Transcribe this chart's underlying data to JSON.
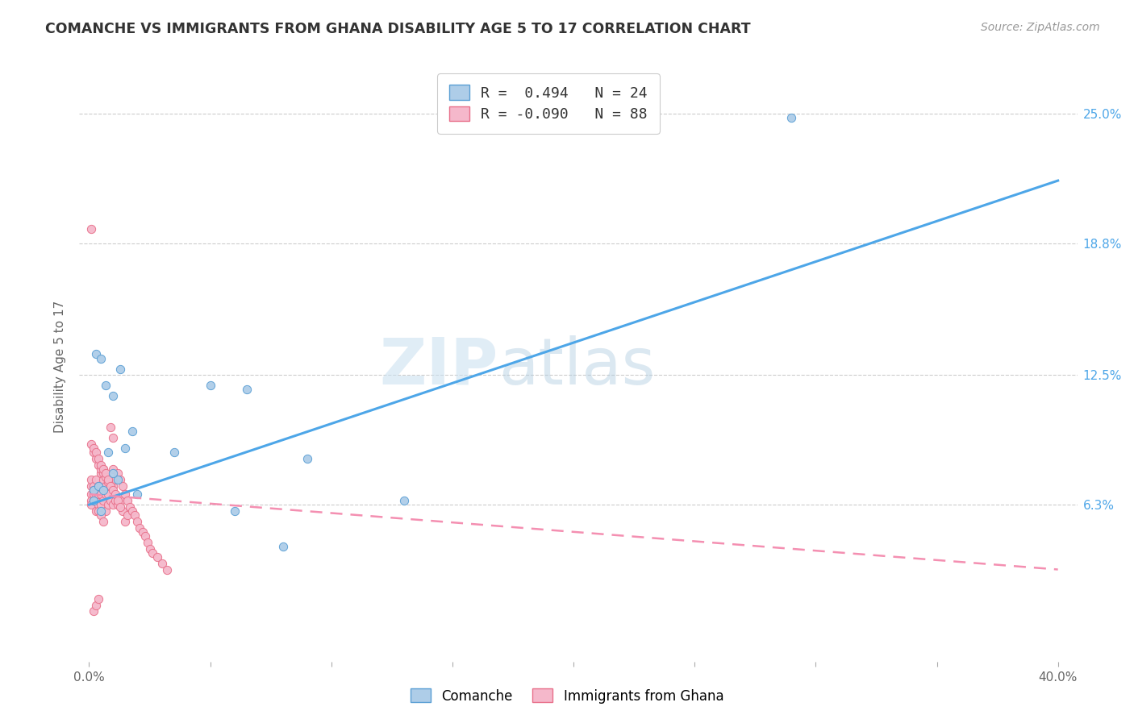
{
  "title": "COMANCHE VS IMMIGRANTS FROM GHANA DISABILITY AGE 5 TO 17 CORRELATION CHART",
  "source": "Source: ZipAtlas.com",
  "ylabel": "Disability Age 5 to 17",
  "xlim": [
    0.0,
    0.4
  ],
  "ylim": [
    0.0,
    0.27
  ],
  "yticks": [
    0.063,
    0.125,
    0.188,
    0.25
  ],
  "ytick_labels": [
    "6.3%",
    "12.5%",
    "18.8%",
    "25.0%"
  ],
  "xticks": [
    0.0,
    0.05,
    0.1,
    0.15,
    0.2,
    0.25,
    0.3,
    0.35,
    0.4
  ],
  "xtick_labels": [
    "0.0%",
    "",
    "",
    "",
    "",
    "",
    "",
    "",
    "40.0%"
  ],
  "comanche_color": "#aecde8",
  "ghana_color": "#f5b8cb",
  "comanche_edge": "#5a9fd4",
  "ghana_edge": "#e8708a",
  "trend_comanche_color": "#4da6e8",
  "trend_ghana_color": "#f48fb1",
  "legend_r_comanche": "R =  0.494",
  "legend_n_comanche": "N = 24",
  "legend_r_ghana": "R = -0.090",
  "legend_n_ghana": "N = 88",
  "watermark_zip": "ZIP",
  "watermark_atlas": "atlas",
  "comanche_trend_x": [
    0.0,
    0.4
  ],
  "comanche_trend_y": [
    0.063,
    0.218
  ],
  "ghana_trend_x": [
    0.0,
    0.4
  ],
  "ghana_trend_y": [
    0.068,
    0.032
  ],
  "comanche_x": [
    0.003,
    0.005,
    0.007,
    0.01,
    0.013,
    0.002,
    0.004,
    0.006,
    0.008,
    0.012,
    0.015,
    0.018,
    0.035,
    0.05,
    0.065,
    0.09,
    0.13,
    0.002,
    0.005,
    0.01,
    0.02,
    0.06,
    0.08,
    0.29
  ],
  "comanche_y": [
    0.135,
    0.133,
    0.12,
    0.115,
    0.128,
    0.07,
    0.072,
    0.07,
    0.088,
    0.075,
    0.09,
    0.098,
    0.088,
    0.12,
    0.118,
    0.085,
    0.065,
    0.065,
    0.06,
    0.078,
    0.068,
    0.06,
    0.043,
    0.248
  ],
  "ghana_x": [
    0.001,
    0.001,
    0.001,
    0.001,
    0.001,
    0.002,
    0.002,
    0.002,
    0.002,
    0.003,
    0.003,
    0.003,
    0.003,
    0.004,
    0.004,
    0.004,
    0.004,
    0.005,
    0.005,
    0.005,
    0.005,
    0.006,
    0.006,
    0.006,
    0.007,
    0.007,
    0.007,
    0.008,
    0.008,
    0.008,
    0.009,
    0.009,
    0.01,
    0.01,
    0.01,
    0.011,
    0.011,
    0.012,
    0.012,
    0.013,
    0.013,
    0.014,
    0.014,
    0.015,
    0.015,
    0.016,
    0.016,
    0.017,
    0.018,
    0.019,
    0.02,
    0.021,
    0.022,
    0.023,
    0.024,
    0.025,
    0.026,
    0.028,
    0.03,
    0.032,
    0.001,
    0.002,
    0.003,
    0.004,
    0.005,
    0.006,
    0.007,
    0.008,
    0.009,
    0.01,
    0.002,
    0.003,
    0.004,
    0.005,
    0.006,
    0.007,
    0.008,
    0.009,
    0.01,
    0.011,
    0.012,
    0.013,
    0.001,
    0.002,
    0.003,
    0.004,
    0.005,
    0.006
  ],
  "ghana_y": [
    0.072,
    0.068,
    0.065,
    0.075,
    0.063,
    0.072,
    0.07,
    0.068,
    0.065,
    0.075,
    0.068,
    0.065,
    0.06,
    0.072,
    0.068,
    0.063,
    0.06,
    0.078,
    0.072,
    0.068,
    0.063,
    0.08,
    0.075,
    0.065,
    0.072,
    0.068,
    0.06,
    0.075,
    0.068,
    0.063,
    0.072,
    0.065,
    0.08,
    0.072,
    0.063,
    0.075,
    0.065,
    0.078,
    0.063,
    0.075,
    0.065,
    0.072,
    0.06,
    0.068,
    0.055,
    0.065,
    0.058,
    0.062,
    0.06,
    0.058,
    0.055,
    0.052,
    0.05,
    0.048,
    0.045,
    0.042,
    0.04,
    0.038,
    0.035,
    0.032,
    0.092,
    0.088,
    0.085,
    0.082,
    0.08,
    0.078,
    0.076,
    0.074,
    0.1,
    0.095,
    0.09,
    0.088,
    0.085,
    0.082,
    0.08,
    0.078,
    0.075,
    0.072,
    0.07,
    0.068,
    0.065,
    0.062,
    0.195,
    0.012,
    0.015,
    0.018,
    0.058,
    0.055
  ]
}
